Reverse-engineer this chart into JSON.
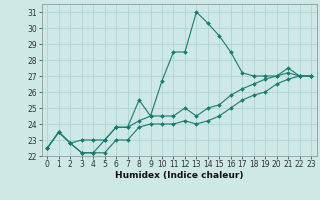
{
  "xlabel": "Humidex (Indice chaleur)",
  "background_color": "#cde8e5",
  "line_color": "#1a7a6e",
  "grid_color": "#aed4cf",
  "xlim": [
    -0.5,
    23.5
  ],
  "ylim": [
    22,
    31.5
  ],
  "yticks": [
    22,
    23,
    24,
    25,
    26,
    27,
    28,
    29,
    30,
    31
  ],
  "xticks": [
    0,
    1,
    2,
    3,
    4,
    5,
    6,
    7,
    8,
    9,
    10,
    11,
    12,
    13,
    14,
    15,
    16,
    17,
    18,
    19,
    20,
    21,
    22,
    23
  ],
  "lines": [
    {
      "x": [
        0,
        1,
        2,
        3,
        4,
        5,
        6,
        7,
        8,
        9,
        10,
        11,
        12,
        13,
        14,
        15,
        16,
        17,
        18,
        19,
        20,
        21,
        22,
        23
      ],
      "y": [
        22.5,
        23.5,
        22.8,
        22.2,
        22.2,
        23.0,
        23.8,
        23.8,
        25.5,
        24.5,
        26.7,
        28.5,
        28.5,
        31.0,
        30.3,
        29.5,
        28.5,
        27.2,
        27.0,
        27.0,
        27.0,
        27.5,
        27.0,
        27.0
      ]
    },
    {
      "x": [
        0,
        1,
        2,
        3,
        4,
        5,
        6,
        7,
        8,
        9,
        10,
        11,
        12,
        13,
        14,
        15,
        16,
        17,
        18,
        19,
        20,
        21,
        22,
        23
      ],
      "y": [
        22.5,
        23.5,
        22.8,
        23.0,
        23.0,
        23.0,
        23.8,
        23.8,
        24.2,
        24.5,
        24.5,
        24.5,
        25.0,
        24.5,
        25.0,
        25.2,
        25.8,
        26.2,
        26.5,
        26.8,
        27.0,
        27.2,
        27.0,
        27.0
      ]
    },
    {
      "x": [
        0,
        1,
        2,
        3,
        4,
        5,
        6,
        7,
        8,
        9,
        10,
        11,
        12,
        13,
        14,
        15,
        16,
        17,
        18,
        19,
        20,
        21,
        22,
        23
      ],
      "y": [
        22.5,
        23.5,
        22.8,
        22.2,
        22.2,
        22.2,
        23.0,
        23.0,
        23.8,
        24.0,
        24.0,
        24.0,
        24.2,
        24.0,
        24.2,
        24.5,
        25.0,
        25.5,
        25.8,
        26.0,
        26.5,
        26.8,
        27.0,
        27.0
      ]
    }
  ]
}
